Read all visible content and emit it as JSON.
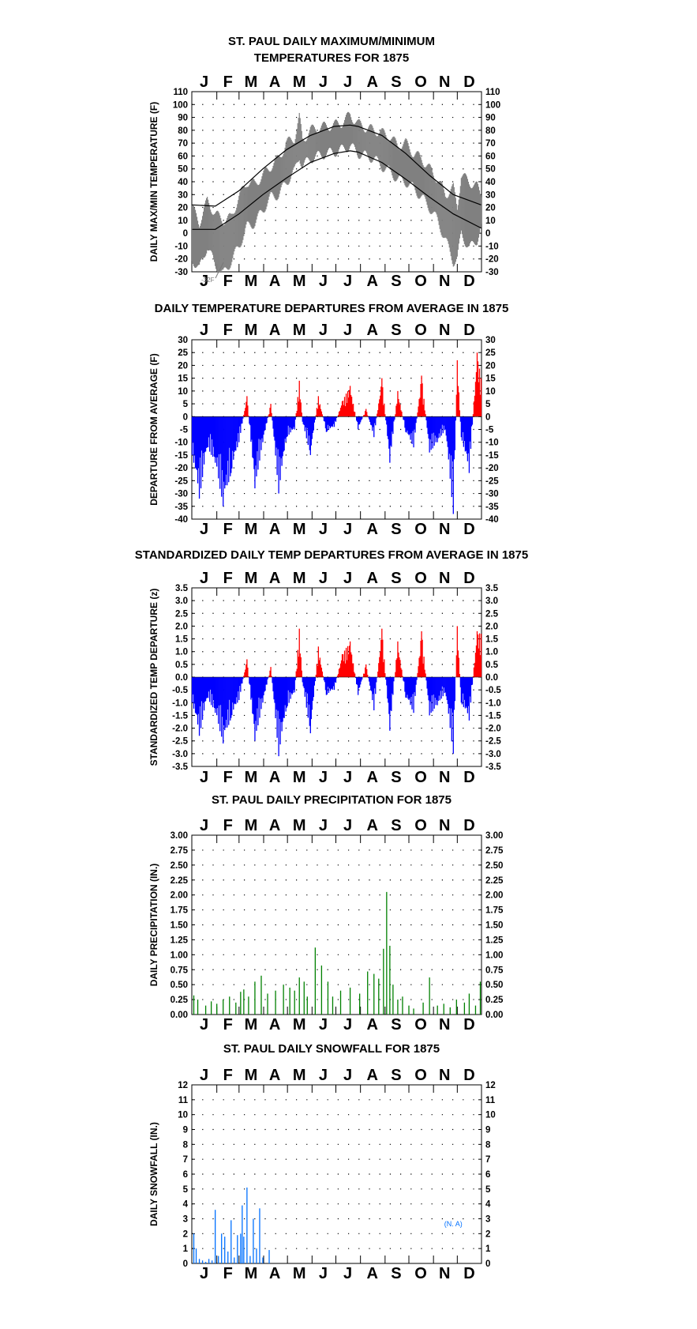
{
  "chart_data": [
    {
      "type": "line",
      "title": "ST. PAUL DAILY MAXIMUM/MINIMUM TEMPERATURES FOR 1875",
      "title_lines": [
        "ST. PAUL DAILY MAXIMUM/MINIMUM",
        "TEMPERATURES FOR 1875"
      ],
      "xlabel": "",
      "ylabel": "DAILY MAX/MIN TEMPERATURE (F)",
      "months": [
        "J",
        "F",
        "M",
        "A",
        "M",
        "J",
        "J",
        "A",
        "S",
        "O",
        "N",
        "D"
      ],
      "ylim": [
        -30,
        110
      ],
      "yticks": [
        -30,
        -20,
        -10,
        0,
        10,
        20,
        30,
        40,
        50,
        60,
        70,
        80,
        90,
        100,
        110
      ],
      "annotation": "-32F",
      "series": [
        {
          "name": "",
          "role": "daily max/min range",
          "color": "#808080",
          "x_day": [
            1,
            10,
            20,
            30,
            40,
            50,
            60,
            70,
            80,
            90,
            100,
            110,
            120,
            130,
            136,
            140,
            150,
            160,
            170,
            180,
            190,
            200,
            210,
            220,
            230,
            240,
            250,
            260,
            270,
            280,
            290,
            300,
            310,
            320,
            330,
            335,
            340,
            350,
            360,
            365
          ],
          "max": [
            20,
            8,
            25,
            15,
            10,
            12,
            28,
            40,
            38,
            45,
            52,
            58,
            70,
            74,
            90,
            72,
            80,
            82,
            83,
            84,
            86,
            92,
            85,
            82,
            80,
            78,
            75,
            68,
            70,
            62,
            58,
            50,
            42,
            30,
            35,
            20,
            45,
            40,
            36,
            30
          ],
          "min": [
            -20,
            -28,
            -10,
            -25,
            -32,
            -22,
            -10,
            5,
            8,
            18,
            28,
            30,
            40,
            48,
            60,
            52,
            58,
            60,
            62,
            63,
            65,
            68,
            62,
            60,
            58,
            52,
            48,
            42,
            40,
            35,
            28,
            20,
            10,
            -5,
            -22,
            -20,
            0,
            -12,
            -5,
            5
          ]
        },
        {
          "name": "",
          "role": "normal maximum",
          "color": "#000000",
          "x_day": [
            1,
            30,
            60,
            90,
            120,
            150,
            180,
            200,
            210,
            240,
            270,
            300,
            330,
            365
          ],
          "values": [
            22,
            21,
            33,
            50,
            65,
            76,
            83,
            84,
            83,
            76,
            62,
            45,
            30,
            22
          ]
        },
        {
          "name": "",
          "role": "normal minimum",
          "color": "#000000",
          "x_day": [
            1,
            30,
            60,
            90,
            120,
            150,
            180,
            200,
            210,
            240,
            270,
            300,
            330,
            365
          ],
          "values": [
            3,
            3,
            15,
            30,
            43,
            55,
            62,
            64,
            63,
            55,
            42,
            28,
            15,
            4
          ]
        }
      ]
    },
    {
      "type": "bar",
      "title": "DAILY TEMPERATURE DEPARTURES FROM AVERAGE IN 1875",
      "xlabel": "",
      "ylabel": "DEPARTURE FROM AVERAGE (F)",
      "months": [
        "J",
        "F",
        "M",
        "A",
        "M",
        "J",
        "J",
        "A",
        "S",
        "O",
        "N",
        "D"
      ],
      "ylim": [
        -40,
        30
      ],
      "yticks": [
        -40,
        -35,
        -30,
        -25,
        -20,
        -15,
        -10,
        -5,
        0,
        5,
        10,
        15,
        20,
        25,
        30
      ],
      "positive_color": "#ff0000",
      "negative_color": "#0000ff",
      "x_day": [
        1,
        10,
        20,
        30,
        40,
        50,
        60,
        70,
        80,
        90,
        100,
        110,
        120,
        130,
        136,
        140,
        150,
        160,
        170,
        180,
        190,
        200,
        210,
        220,
        230,
        240,
        250,
        260,
        270,
        280,
        290,
        300,
        310,
        320,
        330,
        335,
        340,
        350,
        360,
        365
      ],
      "values": [
        -15,
        -32,
        -12,
        -18,
        -35,
        -22,
        -10,
        8,
        -28,
        -10,
        5,
        -30,
        -8,
        -5,
        14,
        -2,
        -15,
        8,
        -6,
        -4,
        6,
        12,
        -5,
        3,
        -8,
        15,
        -18,
        10,
        -6,
        -12,
        16,
        -14,
        -10,
        -5,
        -38,
        22,
        -8,
        -22,
        25,
        15
      ]
    },
    {
      "type": "bar",
      "title": "STANDARDIZED DAILY TEMP DEPARTURES FROM AVERAGE IN 1875",
      "xlabel": "",
      "ylabel": "STANDARDIZED TEMP DEPARTURE (z)",
      "months": [
        "J",
        "F",
        "M",
        "A",
        "M",
        "J",
        "J",
        "A",
        "S",
        "O",
        "N",
        "D"
      ],
      "ylim": [
        -3.5,
        3.5
      ],
      "yticks": [
        "-3.5",
        "-3.0",
        "-2.5",
        "-2.0",
        "-1.5",
        "-1.0",
        "-0.5",
        "0.0",
        "0.5",
        "1.0",
        "1.5",
        "2.0",
        "2.5",
        "3.0",
        "3.5"
      ],
      "positive_color": "#ff0000",
      "negative_color": "#0000ff",
      "x_day": [
        1,
        10,
        20,
        30,
        40,
        50,
        60,
        70,
        80,
        90,
        100,
        110,
        120,
        130,
        136,
        140,
        150,
        160,
        170,
        180,
        190,
        200,
        210,
        220,
        230,
        240,
        250,
        260,
        270,
        280,
        290,
        300,
        310,
        320,
        330,
        335,
        340,
        350,
        360,
        365
      ],
      "values": [
        -1.0,
        -2.3,
        -0.8,
        -1.4,
        -2.6,
        -1.6,
        -0.9,
        0.7,
        -2.5,
        -1.0,
        0.4,
        -3.1,
        -1.2,
        -0.6,
        1.9,
        -0.2,
        -2.2,
        1.2,
        -0.7,
        -0.5,
        0.9,
        1.4,
        -0.7,
        0.5,
        -1.3,
        1.9,
        -2.1,
        1.4,
        -0.8,
        -1.4,
        1.8,
        -1.5,
        -1.1,
        -0.6,
        -3.0,
        2.0,
        -1.0,
        -1.7,
        1.8,
        1.7
      ]
    },
    {
      "type": "bar",
      "title": "ST. PAUL DAILY PRECIPITATION FOR 1875",
      "xlabel": "",
      "ylabel": "DAILY PRECIPITATION (IN.)",
      "months": [
        "J",
        "F",
        "M",
        "A",
        "M",
        "J",
        "J",
        "A",
        "S",
        "O",
        "N",
        "D"
      ],
      "ylim": [
        0,
        3
      ],
      "yticks": [
        "0.00",
        "0.25",
        "0.50",
        "0.75",
        "1.00",
        "1.25",
        "1.50",
        "1.75",
        "2.00",
        "2.25",
        "2.50",
        "2.75",
        "3.00"
      ],
      "color": "#008000",
      "x_day": [
        3,
        8,
        18,
        25,
        32,
        40,
        48,
        56,
        62,
        66,
        72,
        80,
        88,
        96,
        106,
        116,
        124,
        130,
        136,
        142,
        146,
        156,
        164,
        172,
        178,
        188,
        200,
        212,
        222,
        230,
        236,
        242,
        246,
        250,
        254,
        260,
        266,
        274,
        280,
        292,
        300,
        310,
        318,
        326,
        334,
        344,
        350,
        358,
        364
      ],
      "values": [
        0.32,
        0.25,
        0.15,
        0.22,
        0.18,
        0.25,
        0.3,
        0.2,
        0.38,
        0.42,
        0.3,
        0.55,
        0.65,
        0.35,
        0.4,
        0.5,
        0.45,
        0.4,
        0.62,
        0.55,
        0.3,
        1.12,
        0.82,
        0.55,
        0.3,
        0.4,
        0.45,
        0.35,
        0.72,
        0.68,
        0.6,
        1.1,
        2.05,
        1.15,
        0.5,
        0.25,
        0.3,
        0.15,
        0.1,
        0.2,
        0.62,
        0.15,
        0.18,
        0.12,
        0.25,
        0.2,
        0.35,
        0.15,
        0.55
      ]
    },
    {
      "type": "bar",
      "title": "ST. PAUL DAILY SNOWFALL FOR 1875",
      "xlabel": "",
      "ylabel": "DAILY SNOWFALL (IN.)",
      "months": [
        "J",
        "F",
        "M",
        "A",
        "M",
        "J",
        "J",
        "A",
        "S",
        "O",
        "N",
        "D"
      ],
      "ylim": [
        0,
        12
      ],
      "yticks": [
        "0",
        "1",
        "2",
        "3",
        "4",
        "5",
        "6",
        "7",
        "8",
        "9",
        "10",
        "11",
        "12"
      ],
      "color": "#0070ff",
      "annotation": "(N. A)",
      "x_day": [
        3,
        6,
        10,
        14,
        18,
        22,
        26,
        30,
        34,
        38,
        42,
        46,
        50,
        54,
        58,
        62,
        64,
        66,
        70,
        74,
        78,
        82,
        86,
        90,
        98
      ],
      "values": [
        2.0,
        1.0,
        0.3,
        0.2,
        0.1,
        0.3,
        0.2,
        3.6,
        0.5,
        2.0,
        1.8,
        0.8,
        2.9,
        0.4,
        1.9,
        2.0,
        3.9,
        1.8,
        5.1,
        0.5,
        3.0,
        1.0,
        3.7,
        0.4,
        0.9
      ]
    }
  ]
}
